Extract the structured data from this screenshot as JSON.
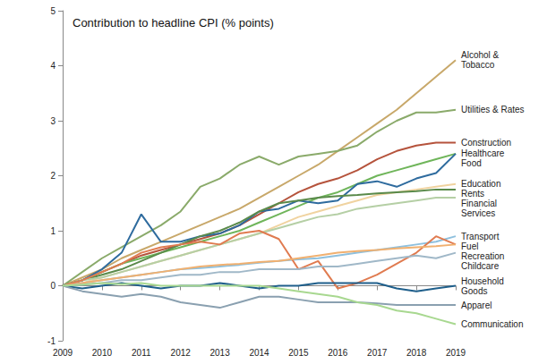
{
  "chart_data": {
    "type": "line",
    "title": "Contribution to headline CPI (% points)",
    "x": [
      2009,
      2009.5,
      2010,
      2010.5,
      2011,
      2011.5,
      2012,
      2012.5,
      2013,
      2013.5,
      2014,
      2014.5,
      2015,
      2015.5,
      2016,
      2016.5,
      2017,
      2017.5,
      2018,
      2018.5,
      2019
    ],
    "xlim": [
      2009,
      2019
    ],
    "xticks": [
      2009,
      2010,
      2011,
      2012,
      2013,
      2014,
      2015,
      2016,
      2017,
      2018,
      2019
    ],
    "ylim": [
      -1,
      5
    ],
    "yticks": [
      -1,
      0,
      1,
      2,
      3,
      4,
      5
    ],
    "grid": false,
    "series": [
      {
        "name": "Alcohol & Tobacco",
        "color": "#c8a86a",
        "values": [
          0,
          0.15,
          0.3,
          0.5,
          0.65,
          0.8,
          0.95,
          1.1,
          1.25,
          1.4,
          1.6,
          1.8,
          2.0,
          2.2,
          2.45,
          2.7,
          2.95,
          3.2,
          3.5,
          3.8,
          4.1
        ]
      },
      {
        "name": "Utilities & Rates",
        "color": "#8aaa6a",
        "values": [
          0,
          0.25,
          0.5,
          0.7,
          0.9,
          1.1,
          1.35,
          1.8,
          1.95,
          2.2,
          2.35,
          2.2,
          2.35,
          2.4,
          2.45,
          2.55,
          2.8,
          3.0,
          3.15,
          3.15,
          3.2
        ]
      },
      {
        "name": "Construction",
        "color": "#b5533c",
        "values": [
          0,
          0.1,
          0.25,
          0.4,
          0.55,
          0.65,
          0.75,
          0.85,
          0.95,
          1.1,
          1.3,
          1.5,
          1.7,
          1.85,
          1.95,
          2.1,
          2.3,
          2.45,
          2.55,
          2.6,
          2.6
        ]
      },
      {
        "name": "Healthcare",
        "color": "#6fb55a",
        "values": [
          0,
          0.1,
          0.25,
          0.4,
          0.5,
          0.6,
          0.7,
          0.8,
          0.9,
          1.0,
          1.15,
          1.3,
          1.45,
          1.6,
          1.7,
          1.85,
          2.0,
          2.1,
          2.2,
          2.3,
          2.4
        ]
      },
      {
        "name": "Food",
        "color": "#2e6b9e",
        "values": [
          0,
          0.1,
          0.3,
          0.6,
          1.3,
          0.8,
          0.8,
          0.9,
          0.95,
          1.1,
          1.35,
          1.4,
          1.55,
          1.5,
          1.55,
          1.85,
          1.9,
          1.8,
          1.95,
          2.05,
          2.4
        ]
      },
      {
        "name": "Education",
        "color": "#f0d3a0",
        "values": [
          0,
          0.05,
          0.15,
          0.25,
          0.35,
          0.45,
          0.55,
          0.65,
          0.75,
          0.85,
          0.95,
          1.1,
          1.25,
          1.35,
          1.45,
          1.55,
          1.65,
          1.7,
          1.75,
          1.8,
          1.85
        ]
      },
      {
        "name": "Rents",
        "color": "#5a8a4a",
        "values": [
          0,
          0.1,
          0.2,
          0.3,
          0.45,
          0.6,
          0.75,
          0.9,
          1.0,
          1.15,
          1.35,
          1.5,
          1.55,
          1.6,
          1.63,
          1.65,
          1.68,
          1.7,
          1.72,
          1.75,
          1.75
        ]
      },
      {
        "name": "Financial Services",
        "color": "#b5cfa5",
        "values": [
          0,
          0.1,
          0.15,
          0.25,
          0.35,
          0.45,
          0.55,
          0.65,
          0.75,
          0.85,
          0.95,
          1.05,
          1.15,
          1.25,
          1.3,
          1.4,
          1.45,
          1.5,
          1.55,
          1.6,
          1.6
        ]
      },
      {
        "name": "Transport",
        "color": "#8ec0de",
        "values": [
          0,
          0.05,
          0.1,
          0.15,
          0.2,
          0.25,
          0.3,
          0.32,
          0.35,
          0.38,
          0.42,
          0.45,
          0.48,
          0.5,
          0.55,
          0.6,
          0.65,
          0.7,
          0.75,
          0.8,
          0.9
        ]
      },
      {
        "name": "Fuel",
        "color": "#e07b50",
        "values": [
          0,
          0.1,
          0.25,
          0.4,
          0.6,
          0.7,
          0.75,
          0.8,
          0.75,
          0.95,
          1.0,
          0.85,
          0.3,
          0.45,
          -0.05,
          0.05,
          0.2,
          0.4,
          0.6,
          0.9,
          0.75
        ]
      },
      {
        "name": "Recreation",
        "color": "#f0b070",
        "values": [
          0,
          0.05,
          0.1,
          0.15,
          0.2,
          0.25,
          0.3,
          0.35,
          0.38,
          0.4,
          0.43,
          0.45,
          0.5,
          0.55,
          0.6,
          0.63,
          0.65,
          0.68,
          0.7,
          0.72,
          0.75
        ]
      },
      {
        "name": "Childcare",
        "color": "#a0b8c8",
        "values": [
          0,
          0.02,
          0.05,
          0.1,
          0.1,
          0.15,
          0.2,
          0.2,
          0.25,
          0.25,
          0.3,
          0.3,
          0.3,
          0.35,
          0.35,
          0.4,
          0.45,
          0.5,
          0.55,
          0.5,
          0.6
        ]
      },
      {
        "name": "Household Goods",
        "color": "#1f5f8b",
        "values": [
          0,
          -0.05,
          0,
          0.05,
          0,
          -0.05,
          0,
          0,
          0.05,
          0,
          -0.05,
          0,
          0,
          0.05,
          0.05,
          0.05,
          0.05,
          -0.05,
          -0.1,
          -0.05,
          0
        ]
      },
      {
        "name": "Apparel",
        "color": "#8aa0b0",
        "values": [
          0,
          -0.1,
          -0.15,
          -0.2,
          -0.15,
          -0.2,
          -0.3,
          -0.35,
          -0.4,
          -0.3,
          -0.2,
          -0.2,
          -0.25,
          -0.3,
          -0.3,
          -0.3,
          -0.32,
          -0.35,
          -0.35,
          -0.35,
          -0.35
        ]
      },
      {
        "name": "Communication",
        "color": "#a8d890",
        "values": [
          0,
          0.02,
          0.05,
          0.03,
          0.05,
          0,
          0,
          0,
          0,
          0,
          0,
          -0.05,
          -0.1,
          -0.15,
          -0.2,
          -0.3,
          -0.35,
          -0.45,
          -0.5,
          -0.6,
          -0.7
        ]
      }
    ]
  }
}
